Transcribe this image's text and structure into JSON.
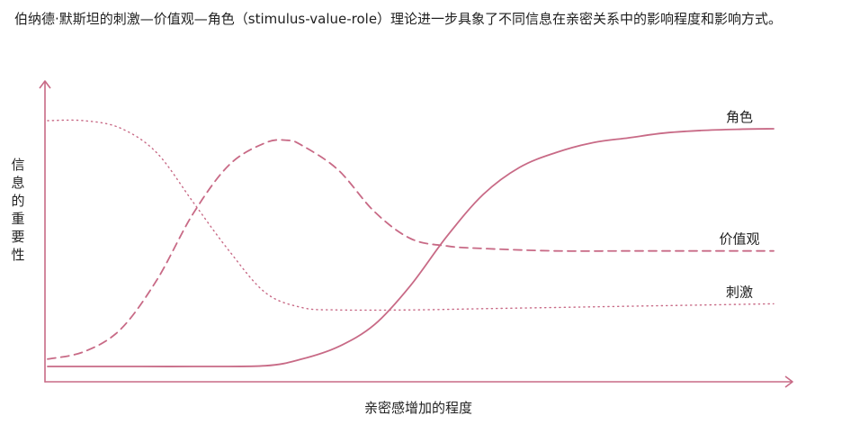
{
  "intro_text": "伯纳德·默斯坦的刺激—价值观—角色（stimulus-value-role）理论进一步具象了不同信息在亲密关系中的影响程度和影响方式。",
  "colors": {
    "accent": "#c86a86",
    "text": "#222222"
  },
  "chart_data": {
    "type": "line",
    "title": "",
    "xlabel": "亲密感增加的程度",
    "ylabel": "信息的重要性",
    "xlim": [
      0,
      100
    ],
    "ylim": [
      0,
      100
    ],
    "grid": false,
    "legend": "inline-right",
    "series": [
      {
        "name": "角色",
        "style": "solid",
        "points": [
          [
            0,
            0
          ],
          [
            10,
            0
          ],
          [
            20,
            0
          ],
          [
            30,
            0.3
          ],
          [
            35,
            3
          ],
          [
            40,
            8
          ],
          [
            45,
            17
          ],
          [
            50,
            33
          ],
          [
            55,
            53
          ],
          [
            60,
            70
          ],
          [
            65,
            81
          ],
          [
            70,
            87
          ],
          [
            75,
            91
          ],
          [
            80,
            93
          ],
          [
            85,
            95
          ],
          [
            90,
            96
          ],
          [
            95,
            96.5
          ],
          [
            100,
            96.7
          ]
        ]
      },
      {
        "name": "价值观",
        "style": "dashed",
        "points": [
          [
            0,
            3
          ],
          [
            5,
            6
          ],
          [
            10,
            15
          ],
          [
            15,
            35
          ],
          [
            20,
            62
          ],
          [
            25,
            82
          ],
          [
            30,
            91
          ],
          [
            33,
            92
          ],
          [
            35,
            90
          ],
          [
            40,
            80
          ],
          [
            45,
            63
          ],
          [
            50,
            52
          ],
          [
            55,
            49
          ],
          [
            60,
            48
          ],
          [
            70,
            47
          ],
          [
            80,
            47
          ],
          [
            90,
            47
          ],
          [
            100,
            47
          ]
        ]
      },
      {
        "name": "刺激",
        "style": "dotted",
        "points": [
          [
            0,
            100
          ],
          [
            5,
            100
          ],
          [
            10,
            97
          ],
          [
            15,
            87
          ],
          [
            20,
            67
          ],
          [
            25,
            47
          ],
          [
            30,
            30
          ],
          [
            35,
            24
          ],
          [
            40,
            23
          ],
          [
            50,
            23
          ],
          [
            60,
            23.5
          ],
          [
            70,
            24
          ],
          [
            80,
            24.5
          ],
          [
            90,
            25
          ],
          [
            100,
            25.5
          ]
        ]
      }
    ]
  }
}
